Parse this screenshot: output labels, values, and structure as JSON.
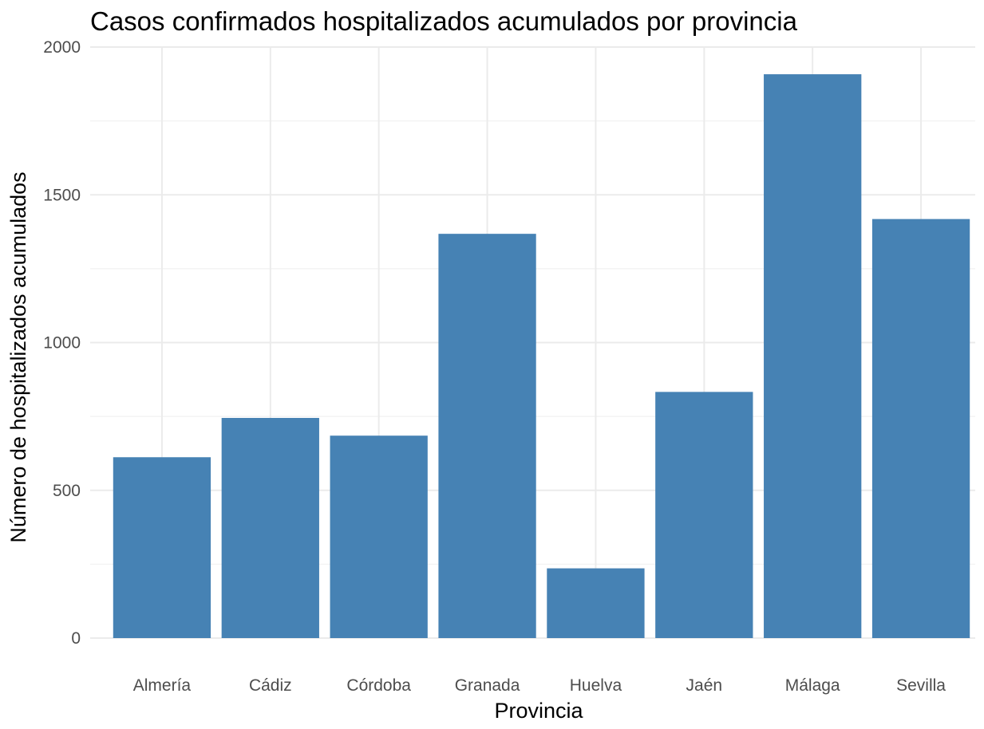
{
  "chart_data": {
    "type": "bar",
    "title": "Casos confirmados hospitalizados acumulados por provincia",
    "xlabel": "Provincia",
    "ylabel": "Número de hospitalizados acumulados",
    "categories": [
      "Almería",
      "Cádiz",
      "Córdoba",
      "Granada",
      "Huelva",
      "Jaén",
      "Málaga",
      "Sevilla"
    ],
    "values": [
      612,
      745,
      685,
      1368,
      236,
      833,
      1908,
      1418
    ],
    "ylim": [
      0,
      2000
    ],
    "yticks": [
      0,
      500,
      1000,
      1500,
      2000
    ],
    "yticks_labels": [
      "0",
      "500",
      "1000",
      "1500",
      "2000"
    ],
    "bar_color": "#4682B4",
    "grid": true,
    "legend": "none"
  }
}
